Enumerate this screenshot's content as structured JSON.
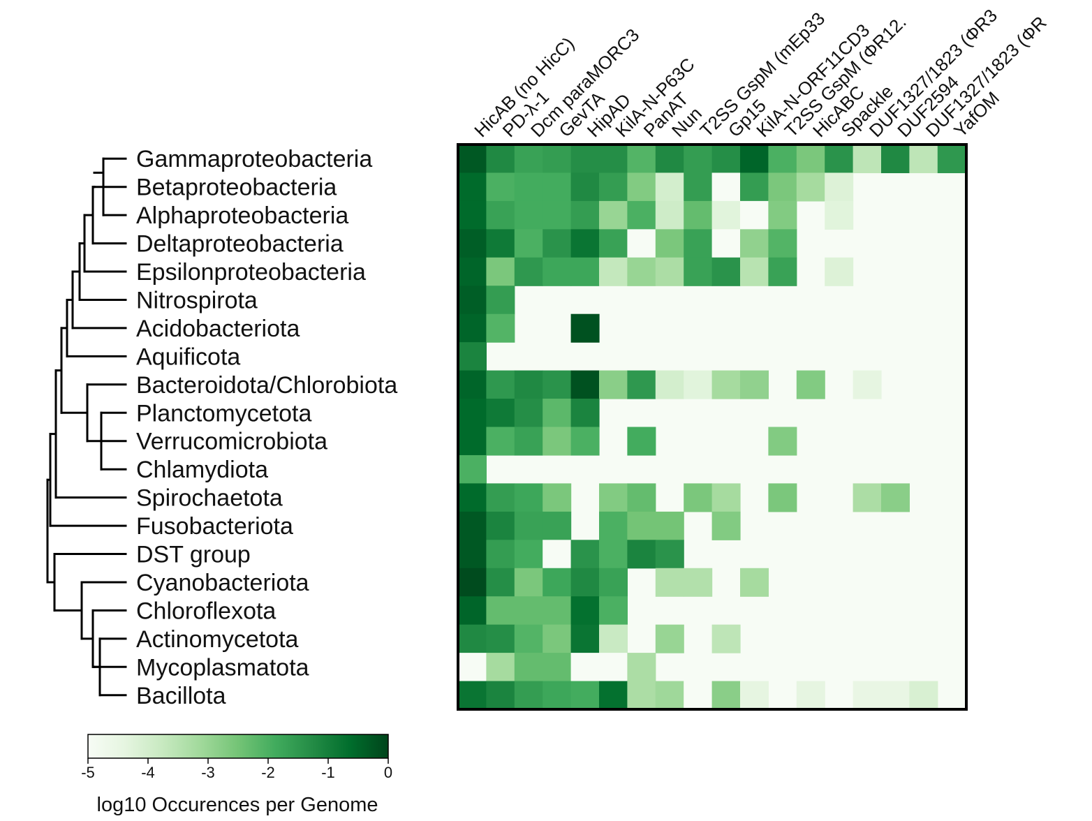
{
  "chart_data": {
    "type": "heatmap",
    "rows": [
      "Gammaproteobacteria",
      "Betaproteobacteria",
      "Alphaproteobacteria",
      "Deltaproteobacteria",
      "Epsilonproteobacteria",
      "Nitrospirota",
      "Acidobacteriota",
      "Aquificota",
      "Bacteroidota/Chlorobiota",
      "Planctomycetota",
      "Verrucomicrobiota",
      "Chlamydiota",
      "Spirochaetota",
      "Fusobacteriota",
      "DST group",
      "Cyanobacteriota",
      "Chloroflexota",
      "Actinomycetota",
      "Mycoplasmatota",
      "Bacillota"
    ],
    "columns": [
      "HicAB (no HicC)",
      "PD-λ-1",
      "Dcm paraMORC3",
      "GevTA",
      "HipAD",
      "KilA-N-P63C",
      "PanAT",
      "Nun",
      "T2SS GspM (mEp33",
      "Gp15",
      "KilA-N-ORF11CD3",
      "T2SS GspM (ΦR12.",
      "HicABC",
      "Spackle",
      "DUF1327/1823 (ΦR3",
      "DUF2594",
      "DUF1327/1823 (ΦR",
      "YafOM"
    ],
    "values": [
      [
        -0.3,
        -1.2,
        -1.7,
        -1.6,
        -1.3,
        -1.3,
        -2.1,
        -1.2,
        -1.6,
        -1.3,
        -0.5,
        -2.0,
        -2.6,
        -1.4,
        -3.6,
        -1.2,
        -3.6,
        -1.5
      ],
      [
        -0.6,
        -2.0,
        -1.9,
        -1.9,
        -1.2,
        -1.6,
        -2.7,
        -4.0,
        -1.6,
        -5,
        -1.6,
        -2.6,
        -3.2,
        -4.2,
        null,
        null,
        null,
        null
      ],
      [
        -0.6,
        -1.7,
        -1.9,
        -1.9,
        -1.6,
        -3.0,
        -2.0,
        -3.9,
        -2.3,
        -4.3,
        -5,
        -2.7,
        null,
        -4.3,
        null,
        null,
        null,
        null
      ],
      [
        -0.4,
        -0.9,
        -2.0,
        -1.4,
        -0.8,
        -1.7,
        -5,
        -2.6,
        -1.7,
        -5,
        -2.9,
        -2.1,
        null,
        null,
        null,
        null,
        null,
        null
      ],
      [
        -0.5,
        -2.6,
        -1.5,
        -1.8,
        -1.8,
        -3.7,
        -3.0,
        -3.3,
        -1.7,
        -1.4,
        -3.5,
        -1.7,
        null,
        -4.2,
        null,
        null,
        null,
        null
      ],
      [
        -0.4,
        -1.6,
        null,
        null,
        null,
        null,
        null,
        null,
        null,
        null,
        null,
        null,
        null,
        null,
        null,
        null,
        null,
        null
      ],
      [
        -0.5,
        -2.1,
        null,
        null,
        -0.2,
        null,
        null,
        null,
        null,
        null,
        null,
        null,
        null,
        null,
        null,
        null,
        null,
        null
      ],
      [
        -1.1,
        null,
        null,
        null,
        null,
        null,
        null,
        null,
        null,
        null,
        null,
        null,
        null,
        null,
        null,
        null,
        null,
        null
      ],
      [
        -0.5,
        -1.5,
        -1.2,
        -1.4,
        -0.2,
        -2.8,
        -1.5,
        -4.0,
        -4.3,
        -3.2,
        -2.9,
        null,
        -2.7,
        null,
        -4.4,
        null,
        null,
        null
      ],
      [
        -0.6,
        -0.9,
        -1.3,
        -2.2,
        -1.1,
        null,
        null,
        null,
        null,
        null,
        null,
        null,
        null,
        null,
        null,
        null,
        null,
        null
      ],
      [
        -0.6,
        -2.0,
        -1.7,
        -2.6,
        -2.0,
        null,
        -1.9,
        null,
        null,
        null,
        null,
        -2.7,
        null,
        null,
        null,
        null,
        null,
        null
      ],
      [
        -2.0,
        null,
        null,
        null,
        null,
        null,
        null,
        null,
        null,
        null,
        null,
        null,
        null,
        null,
        null,
        null,
        null,
        null
      ],
      [
        -0.6,
        -1.6,
        -1.8,
        -2.6,
        null,
        -2.7,
        -2.3,
        null,
        -2.6,
        -3.2,
        null,
        -2.6,
        null,
        null,
        -3.3,
        -2.8,
        null,
        null
      ],
      [
        -0.3,
        -1.1,
        -1.7,
        -1.7,
        null,
        -2.0,
        -2.5,
        -2.5,
        null,
        -2.7,
        null,
        null,
        null,
        null,
        null,
        null,
        null,
        null
      ],
      [
        -0.3,
        -1.6,
        -1.9,
        -5,
        -1.4,
        -2.0,
        -1.1,
        -1.4,
        null,
        null,
        null,
        null,
        null,
        null,
        null,
        null,
        null,
        null
      ],
      [
        -0.1,
        -1.3,
        -2.6,
        -1.8,
        -1.2,
        -1.7,
        null,
        -3.4,
        -3.4,
        null,
        -3.2,
        null,
        null,
        null,
        null,
        null,
        null,
        null
      ],
      [
        -0.5,
        -2.3,
        -2.3,
        -2.3,
        -0.7,
        -2.0,
        null,
        null,
        null,
        null,
        null,
        null,
        null,
        null,
        null,
        null,
        null,
        null
      ],
      [
        -1.2,
        -1.3,
        -2.1,
        -2.6,
        -0.8,
        -3.8,
        null,
        -3.0,
        null,
        -3.6,
        null,
        null,
        null,
        null,
        null,
        null,
        null,
        null
      ],
      [
        -5,
        -3.2,
        -2.3,
        -2.3,
        -5,
        -5,
        -3.3,
        null,
        null,
        null,
        null,
        null,
        null,
        null,
        null,
        null,
        null,
        null
      ],
      [
        -0.8,
        -1.1,
        -1.6,
        -1.8,
        -1.9,
        -0.7,
        -3.3,
        -3.1,
        -5,
        -2.8,
        -4.4,
        null,
        -4.4,
        null,
        -4.5,
        -4.5,
        -4.1,
        null
      ]
    ],
    "colorbar": {
      "min": -5,
      "max": 0,
      "ticks": [
        "-5",
        "-4",
        "-3",
        "-2",
        "-1",
        "0"
      ],
      "label": "log10 Occurences per Genome",
      "colormap": "Greens"
    }
  }
}
